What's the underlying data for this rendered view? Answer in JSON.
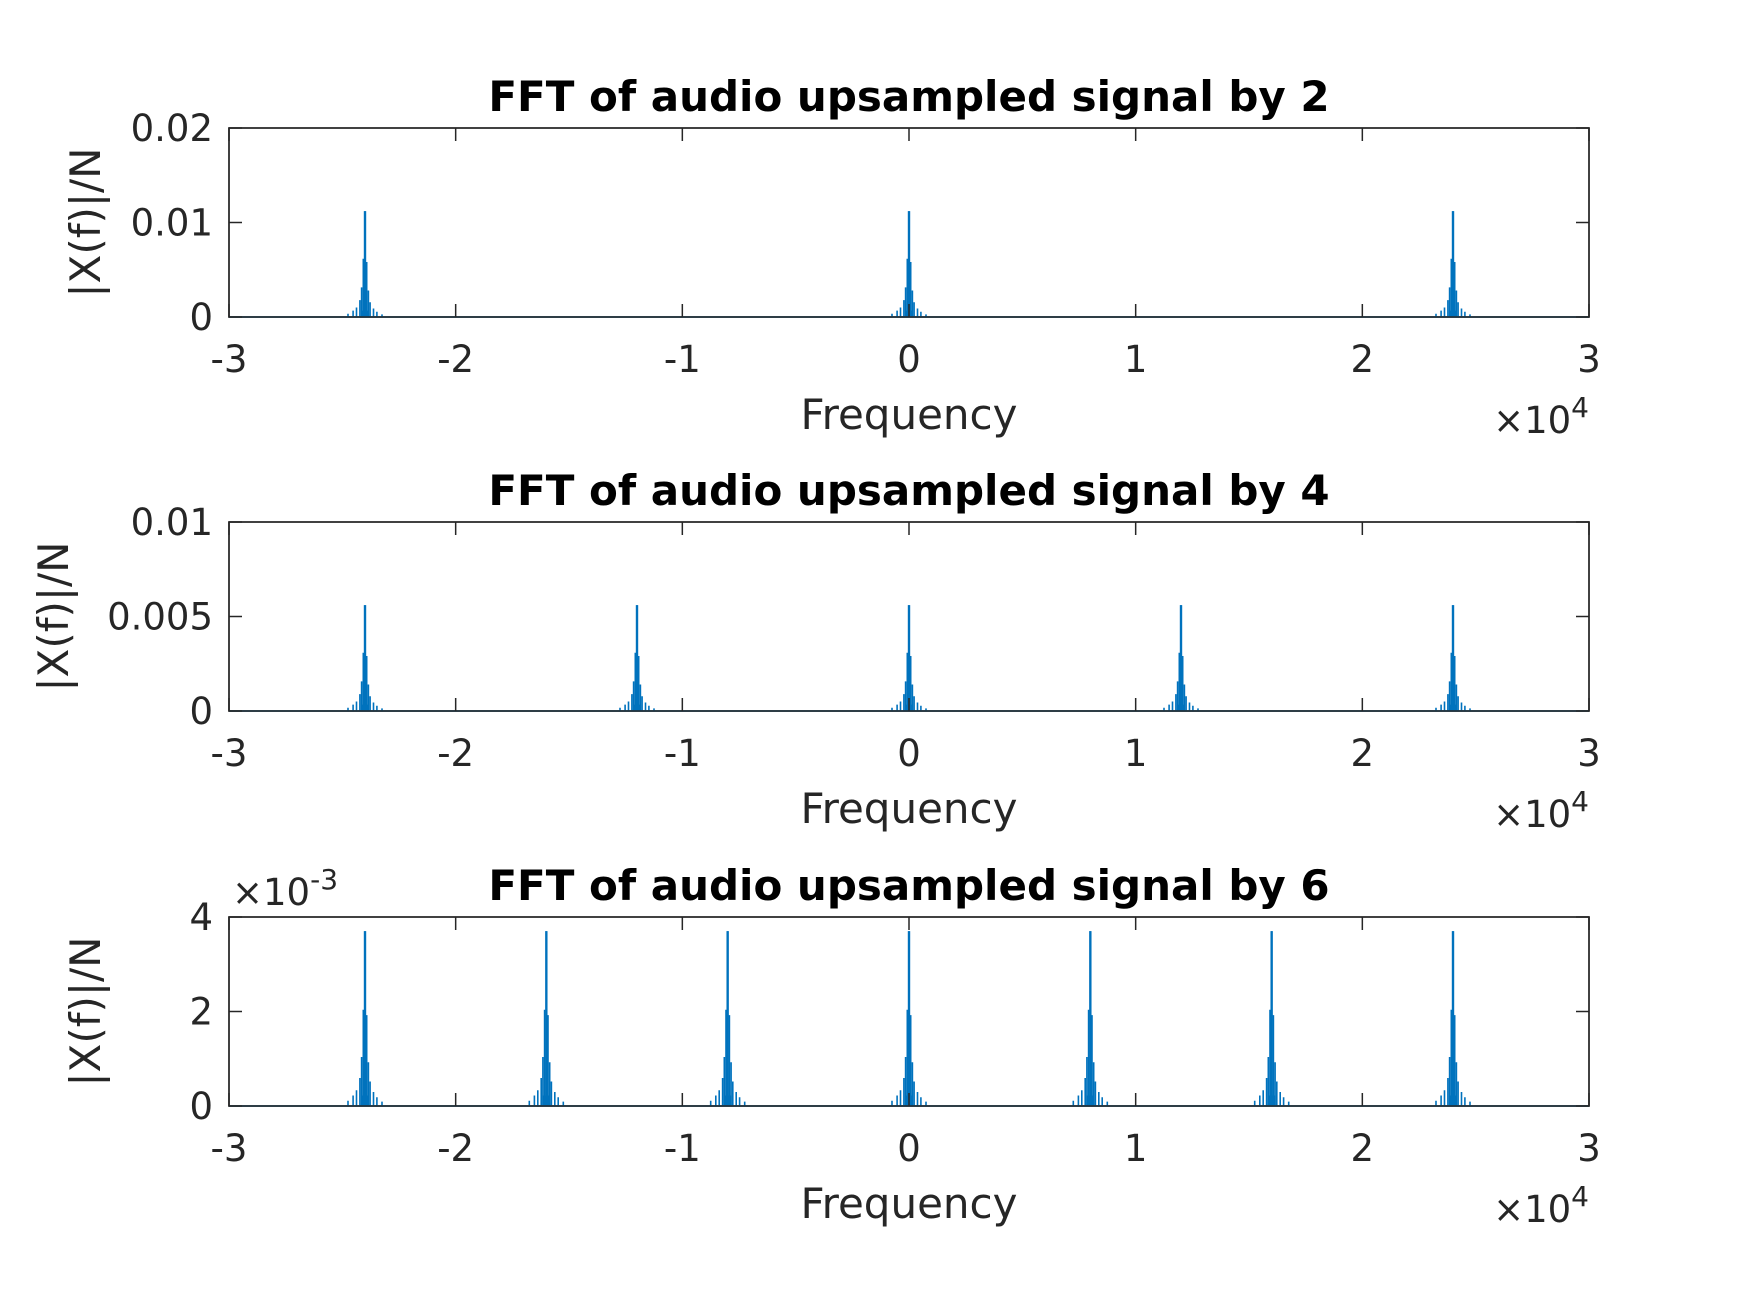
{
  "chart_data": [
    {
      "type": "line",
      "title": "FFT of audio upsampled signal by 2",
      "xlabel": "Frequency",
      "ylabel": "|X(f)|/N",
      "xlim": [
        -30000,
        30000
      ],
      "ylim": [
        0,
        0.02
      ],
      "x_ticks": [
        "-3",
        "-2",
        "-1",
        "0",
        "1",
        "2",
        "3"
      ],
      "x_multiplier": {
        "base": "×10",
        "exp": "4"
      },
      "y_ticks": [
        "0",
        "0.01",
        "0.02"
      ],
      "y_tick_values": [
        0,
        0.01,
        0.02
      ],
      "y_multiplier": null,
      "grid": false,
      "series": [
        {
          "color": "#0072BD",
          "peaks_x": [
            -24000,
            0,
            24000
          ],
          "peak_height": 0.0112
        }
      ]
    },
    {
      "type": "line",
      "title": "FFT of audio upsampled signal by 4",
      "xlabel": "Frequency",
      "ylabel": "|X(f)|/N",
      "xlim": [
        -30000,
        30000
      ],
      "ylim": [
        0,
        0.01
      ],
      "x_ticks": [
        "-3",
        "-2",
        "-1",
        "0",
        "1",
        "2",
        "3"
      ],
      "x_multiplier": {
        "base": "×10",
        "exp": "4"
      },
      "y_ticks": [
        "0",
        "0.005",
        "0.01"
      ],
      "y_tick_values": [
        0,
        0.005,
        0.01
      ],
      "y_multiplier": null,
      "grid": false,
      "series": [
        {
          "color": "#0072BD",
          "peaks_x": [
            -24000,
            -12000,
            0,
            12000,
            24000
          ],
          "peak_height": 0.0056
        }
      ]
    },
    {
      "type": "line",
      "title": "FFT of audio upsampled signal by 6",
      "xlabel": "Frequency",
      "ylabel": "|X(f)|/N",
      "xlim": [
        -30000,
        30000
      ],
      "ylim": [
        0,
        0.004
      ],
      "x_ticks": [
        "-3",
        "-2",
        "-1",
        "0",
        "1",
        "2",
        "3"
      ],
      "x_multiplier": {
        "base": "×10",
        "exp": "4"
      },
      "y_ticks": [
        "0",
        "2",
        "4"
      ],
      "y_tick_values": [
        0,
        0.002,
        0.004
      ],
      "y_multiplier": {
        "base": "×10",
        "exp": "-3"
      },
      "grid": false,
      "series": [
        {
          "color": "#0072BD",
          "peaks_x": [
            -24000,
            -16000,
            -8000,
            0,
            8000,
            16000,
            24000
          ],
          "peak_height": 0.0037
        }
      ]
    }
  ]
}
